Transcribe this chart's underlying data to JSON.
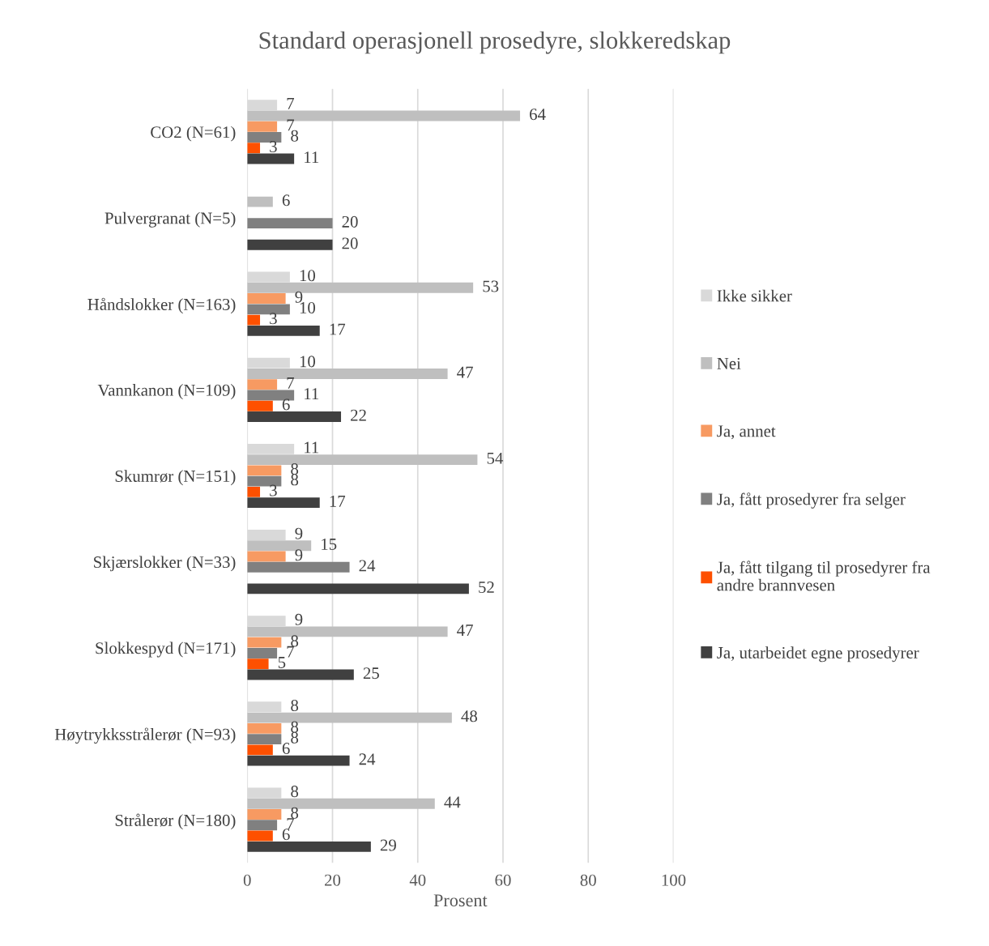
{
  "chart_data": {
    "type": "bar",
    "orientation": "horizontal",
    "title": "Standard operasjonell prosedyre, slokkeredskap",
    "xlabel": "Prosent",
    "categories": [
      "CO2 (N=61)",
      "Pulvergranat (N=5)",
      "Håndslokker (N=163)",
      "Vannkanon (N=109)",
      "Skumrør (N=151)",
      "Skjærslokker (N=33)",
      "Slokkespyd (N=171)",
      "Høytrykksstrålerør (N=93)",
      "Strålerør (N=180)"
    ],
    "series": [
      {
        "name": "Ikke sikker",
        "color": "#d9d9d9",
        "values": [
          7,
          null,
          10,
          10,
          11,
          9,
          9,
          8,
          8
        ]
      },
      {
        "name": "Nei",
        "color": "#bfbfbf",
        "values": [
          64,
          6,
          53,
          47,
          54,
          15,
          47,
          48,
          44
        ]
      },
      {
        "name": "Ja, annet",
        "color": "#f79a62",
        "values": [
          7,
          null,
          9,
          7,
          8,
          9,
          8,
          8,
          8
        ]
      },
      {
        "name": "Ja, fått prosedyrer fra selger",
        "color": "#808080",
        "values": [
          8,
          20,
          10,
          11,
          8,
          24,
          7,
          8,
          7
        ]
      },
      {
        "name": "Ja, fått tilgang til prosedyrer fra andre brannvesen",
        "color": "#fe5000",
        "values": [
          3,
          null,
          3,
          6,
          3,
          null,
          5,
          6,
          6
        ]
      },
      {
        "name": "Ja, utarbeidet egne prosedyrer",
        "color": "#404040",
        "values": [
          11,
          20,
          17,
          22,
          17,
          52,
          25,
          24,
          29
        ]
      }
    ],
    "xlim": [
      0,
      100
    ],
    "xticks": [
      0,
      20,
      40,
      60,
      80,
      100
    ],
    "grid": "x",
    "legend": "right",
    "data_labels": true
  }
}
